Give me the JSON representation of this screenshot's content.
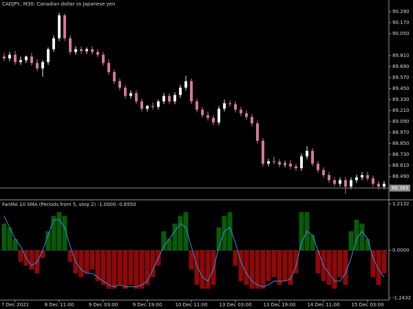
{
  "chart_data": [
    {
      "type": "candlestick",
      "title": "CADJPY., M30:  Canadian dollar vs Japanese yen",
      "open": [
        89.8,
        89.78,
        89.82,
        89.74,
        89.76,
        89.8,
        89.73,
        89.67,
        89.74,
        89.88,
        90.0,
        90.25,
        90.0,
        89.85,
        89.88,
        89.86,
        89.88,
        89.85,
        89.82,
        89.73,
        89.63,
        89.53,
        89.46,
        89.37,
        89.4,
        89.31,
        89.23,
        89.26,
        89.25,
        89.31,
        89.37,
        89.31,
        89.38,
        89.46,
        89.53,
        89.31,
        89.22,
        89.16,
        89.13,
        89.08,
        89.23,
        89.29,
        89.28,
        89.22,
        89.18,
        89.14,
        89.07,
        88.88,
        88.63,
        88.655,
        88.65,
        88.62,
        88.63,
        88.6,
        88.58,
        88.71,
        88.77,
        88.63,
        88.56,
        88.505,
        88.45,
        88.41,
        88.45,
        88.38,
        88.45,
        88.48,
        88.505,
        88.47,
        88.41,
        88.38
      ],
      "high": [
        89.84,
        89.85,
        89.86,
        89.8,
        89.81,
        89.84,
        89.77,
        89.76,
        89.9,
        90.03,
        90.28,
        90.27,
        90.03,
        89.91,
        89.91,
        89.9,
        89.91,
        89.88,
        89.85,
        89.77,
        89.66,
        89.56,
        89.49,
        89.43,
        89.43,
        89.34,
        89.27,
        89.3,
        89.33,
        89.4,
        89.4,
        89.41,
        89.49,
        89.59,
        89.56,
        89.34,
        89.25,
        89.2,
        89.16,
        89.26,
        89.33,
        89.32,
        89.31,
        89.25,
        89.21,
        89.17,
        89.1,
        88.91,
        88.68,
        88.71,
        88.68,
        88.66,
        88.67,
        88.63,
        88.74,
        88.82,
        88.8,
        88.66,
        88.59,
        88.54,
        88.48,
        88.48,
        88.48,
        88.48,
        88.51,
        88.54,
        88.54,
        88.5,
        88.44,
        88.44
      ],
      "low": [
        89.75,
        89.75,
        89.71,
        89.71,
        89.73,
        89.7,
        89.64,
        89.58,
        89.71,
        89.85,
        89.97,
        89.97,
        89.82,
        89.82,
        89.83,
        89.83,
        89.82,
        89.79,
        89.7,
        89.6,
        89.5,
        89.43,
        89.34,
        89.34,
        89.28,
        89.2,
        89.2,
        89.22,
        89.22,
        89.28,
        89.28,
        89.28,
        89.35,
        89.43,
        89.28,
        89.19,
        89.13,
        89.1,
        89.05,
        89.05,
        89.2,
        89.25,
        89.19,
        89.15,
        89.11,
        89.04,
        88.85,
        88.6,
        88.6,
        88.62,
        88.59,
        88.59,
        88.57,
        88.55,
        88.55,
        88.68,
        88.6,
        88.53,
        88.48,
        88.42,
        88.38,
        88.38,
        88.3,
        88.35,
        88.42,
        88.45,
        88.44,
        88.38,
        88.35,
        88.35
      ],
      "close": [
        89.78,
        89.82,
        89.74,
        89.76,
        89.8,
        89.73,
        89.67,
        89.74,
        89.88,
        90.0,
        90.25,
        90.0,
        89.85,
        89.88,
        89.86,
        89.88,
        89.85,
        89.82,
        89.73,
        89.63,
        89.53,
        89.46,
        89.37,
        89.4,
        89.31,
        89.23,
        89.26,
        89.25,
        89.31,
        89.37,
        89.31,
        89.38,
        89.46,
        89.53,
        89.31,
        89.22,
        89.16,
        89.13,
        89.08,
        89.23,
        89.29,
        89.28,
        89.22,
        89.18,
        89.14,
        89.07,
        88.88,
        88.63,
        88.655,
        88.65,
        88.62,
        88.63,
        88.6,
        88.58,
        88.71,
        88.77,
        88.63,
        88.56,
        88.505,
        88.45,
        88.41,
        88.45,
        88.38,
        88.45,
        88.48,
        88.505,
        88.47,
        88.41,
        88.38,
        88.41
      ],
      "up_color": "#f2f2f2",
      "down_color": "#d07a9c",
      "last_price": 88.363,
      "ylim": [
        88.2425,
        90.4175
      ],
      "yticks": [
        {
          "value": 90.29,
          "label": "90.290"
        },
        {
          "value": 90.17,
          "label": "90.170"
        },
        {
          "value": 90.05,
          "label": "90.050"
        },
        {
          "value": 89.81,
          "label": "89.810"
        },
        {
          "value": 89.69,
          "label": "89.690"
        },
        {
          "value": 89.57,
          "label": "89.570"
        },
        {
          "value": 89.45,
          "label": "89.450"
        },
        {
          "value": 89.33,
          "label": "89.330"
        },
        {
          "value": 89.21,
          "label": "89.210"
        },
        {
          "value": 89.09,
          "label": "89.090"
        },
        {
          "value": 88.97,
          "label": "88.970"
        },
        {
          "value": 88.85,
          "label": "88.850"
        },
        {
          "value": 88.73,
          "label": "88.730"
        },
        {
          "value": 88.61,
          "label": "88.610"
        },
        {
          "value": 88.49,
          "label": "88.490"
        }
      ]
    },
    {
      "type": "bar",
      "title": "FanMA 10 SMA (Periods from 5, step 2) -1.0000 -0.6550",
      "categories": [
        null,
        null,
        "7 Dec 2021",
        null,
        null,
        null,
        null,
        null,
        null,
        null,
        "8 Dec 11:00",
        null,
        null,
        null,
        null,
        null,
        null,
        null,
        "9 Dec 03:00",
        null,
        null,
        null,
        null,
        null,
        null,
        null,
        "9 Dec 19:00",
        null,
        null,
        null,
        null,
        null,
        null,
        null,
        "10 Dec 11:00",
        null,
        null,
        null,
        null,
        null,
        null,
        null,
        "13 Dec 03:00",
        null,
        null,
        null,
        null,
        null,
        null,
        null,
        "13 Dec 19:00",
        null,
        null,
        null,
        null,
        null,
        null,
        null,
        "14 Dec 11:00",
        null,
        null,
        null,
        null,
        null,
        null,
        null,
        "15 Dec 03:00",
        null,
        null,
        null
      ],
      "values": [
        0.7,
        0.6,
        0.3,
        -0.3,
        -0.4,
        -0.5,
        -0.6,
        -0.2,
        0.5,
        0.9,
        1.0,
        0.9,
        -0.3,
        -0.6,
        -0.7,
        -0.6,
        -0.5,
        -0.8,
        -0.9,
        -1.0,
        -1.0,
        -0.9,
        -1.0,
        -0.9,
        -1.0,
        -1.0,
        -0.9,
        -0.7,
        -0.4,
        0.5,
        0.3,
        0.7,
        0.9,
        1.0,
        -0.5,
        -0.9,
        -1.0,
        -1.0,
        -0.9,
        0.6,
        0.9,
        1.0,
        -0.4,
        -0.8,
        -0.9,
        -1.0,
        -1.0,
        -1.0,
        -0.8,
        -0.7,
        -0.9,
        -0.8,
        -0.9,
        -0.6,
        1.0,
        1.0,
        0.4,
        -0.6,
        -0.8,
        -0.9,
        -1.0,
        -0.7,
        -0.9,
        0.5,
        0.8,
        0.7,
        0.3,
        -0.7,
        -0.9,
        -0.6
      ],
      "up_color": "#0a5a0a",
      "down_color": "#8b0a0a",
      "line": {
        "color": "#3d8fe0",
        "values": [
          0.9,
          0.6,
          0.3,
          0.1,
          -0.2,
          -0.4,
          -0.3,
          0.0,
          0.4,
          0.8,
          0.8,
          0.6,
          0.1,
          -0.3,
          -0.5,
          -0.6,
          -0.6,
          -0.7,
          -0.8,
          -0.9,
          -0.95,
          -0.9,
          -0.95,
          -0.95,
          -0.95,
          -0.9,
          -0.8,
          -0.5,
          -0.2,
          0.1,
          0.3,
          0.5,
          0.7,
          0.6,
          0.1,
          -0.4,
          -0.7,
          -0.8,
          -0.5,
          0.1,
          0.5,
          0.6,
          0.2,
          -0.3,
          -0.6,
          -0.8,
          -0.9,
          -0.95,
          -0.9,
          -0.8,
          -0.8,
          -0.8,
          -0.75,
          -0.4,
          0.2,
          0.5,
          0.4,
          0.0,
          -0.4,
          -0.6,
          -0.8,
          -0.8,
          -0.6,
          -0.2,
          0.3,
          0.5,
          0.3,
          -0.2,
          -0.5,
          -0.7
        ]
      },
      "ylim": [
        -1.297,
        1.285
      ],
      "yticks": [
        1.2132,
        {
          "value": 0,
          "label": "0.0000"
        },
        -1.2432
      ]
    }
  ]
}
